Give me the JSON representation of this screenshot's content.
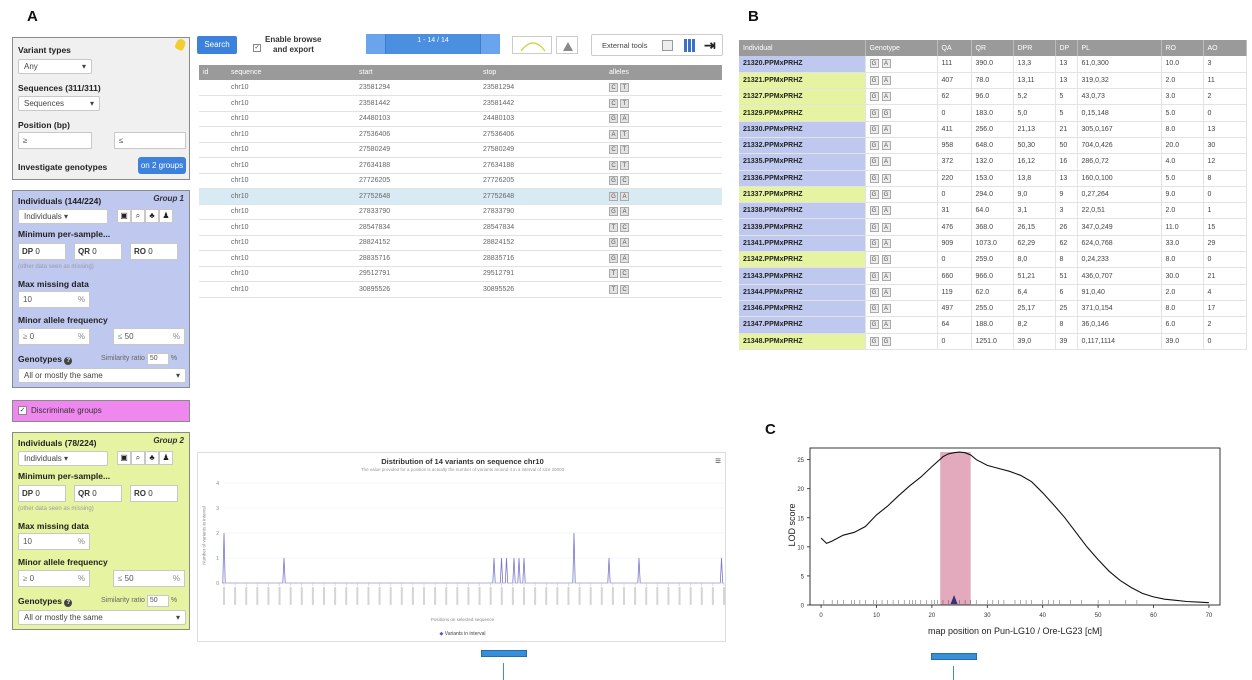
{
  "panels": {
    "a": "A",
    "b": "B",
    "c": "C"
  },
  "top_filter": {
    "variant_types_label": "Variant types",
    "variant_types_value": "Any",
    "sequences_label": "Sequences (311/311)",
    "sequences_value": "Sequences",
    "position_label": "Position (bp)",
    "position_min": "≥",
    "position_max": "≤",
    "investigate_label": "Investigate genotypes",
    "investigate_value": "on 2 groups"
  },
  "group1": {
    "individuals_label": "Individuals (144/224)",
    "group_label": "Group 1",
    "individuals_value": "Individuals",
    "min_per_sample": "Minimum per-sample...",
    "dp_label": "DP",
    "dp_value": "0",
    "qr_label": "QR",
    "qr_value": "0",
    "ro_label": "RO",
    "ro_value": "0",
    "hint": "(other data seen as missing)",
    "max_missing_label": "Max missing data",
    "max_missing_value": "10",
    "percent": "%",
    "maf_label": "Minor allele frequency",
    "maf_min": "0",
    "maf_max": "50",
    "geq": "≥",
    "leq": "≤",
    "genotypes_label": "Genotypes",
    "similarity_label": "Similarity ratio",
    "similarity_value": "50",
    "genotypes_value": "All or mostly the same"
  },
  "discriminate": {
    "label": "Discriminate groups"
  },
  "group2": {
    "individuals_label": "Individuals (78/224)",
    "group_label": "Group 2",
    "individuals_value": "Individuals",
    "min_per_sample": "Minimum per-sample...",
    "dp_label": "DP",
    "dp_value": "0",
    "qr_label": "QR",
    "qr_value": "0",
    "ro_label": "RO",
    "ro_value": "0",
    "hint": "(other data seen as missing)",
    "max_missing_label": "Max missing data",
    "max_missing_value": "10",
    "percent": "%",
    "maf_label": "Minor allele frequency",
    "maf_min": "0",
    "maf_max": "50",
    "geq": "≥",
    "leq": "≤",
    "genotypes_label": "Genotypes",
    "similarity_label": "Similarity ratio",
    "similarity_value": "50",
    "genotypes_value": "All or mostly the same"
  },
  "toolbar": {
    "search_label": "Search",
    "enable_label_1": "Enable browse",
    "enable_label_2": "and export",
    "pager_text": "1 - 14 / 14",
    "external_tools": "External tools"
  },
  "variants_table": {
    "columns": [
      "id",
      "sequence",
      "start",
      "stop",
      "alleles"
    ],
    "rows": [
      {
        "sequence": "chr10",
        "start": "23581294",
        "stop": "23581294",
        "alleles": [
          "C",
          "T"
        ]
      },
      {
        "sequence": "chr10",
        "start": "23581442",
        "stop": "23581442",
        "alleles": [
          "C",
          "T"
        ]
      },
      {
        "sequence": "chr10",
        "start": "24480103",
        "stop": "24480103",
        "alleles": [
          "G",
          "A"
        ]
      },
      {
        "sequence": "chr10",
        "start": "27536406",
        "stop": "27536406",
        "alleles": [
          "A",
          "T"
        ]
      },
      {
        "sequence": "chr10",
        "start": "27580249",
        "stop": "27580249",
        "alleles": [
          "C",
          "T"
        ]
      },
      {
        "sequence": "chr10",
        "start": "27634188",
        "stop": "27634188",
        "alleles": [
          "C",
          "T"
        ]
      },
      {
        "sequence": "chr10",
        "start": "27726205",
        "stop": "27726205",
        "alleles": [
          "G",
          "C"
        ]
      },
      {
        "sequence": "chr10",
        "start": "27752648",
        "stop": "27752648",
        "alleles": [
          "G",
          "A"
        ]
      },
      {
        "sequence": "chr10",
        "start": "27833790",
        "stop": "27833790",
        "alleles": [
          "G",
          "A"
        ]
      },
      {
        "sequence": "chr10",
        "start": "28547834",
        "stop": "28547834",
        "alleles": [
          "T",
          "C"
        ]
      },
      {
        "sequence": "chr10",
        "start": "28824152",
        "stop": "28824152",
        "alleles": [
          "G",
          "A"
        ]
      },
      {
        "sequence": "chr10",
        "start": "28835716",
        "stop": "28835716",
        "alleles": [
          "G",
          "A"
        ]
      },
      {
        "sequence": "chr10",
        "start": "29512791",
        "stop": "29512791",
        "alleles": [
          "T",
          "C"
        ]
      },
      {
        "sequence": "chr10",
        "start": "30895526",
        "stop": "30895526",
        "alleles": [
          "T",
          "C"
        ]
      }
    ]
  },
  "distribution": {
    "title": "Distribution of 14 variants on sequence chr10",
    "subtitle": "The value provided for a position is actually the number of variants around it in a interval of size 20000",
    "ylabel": "Number of variants in interval",
    "xlabel": "Positions on selected sequence",
    "legend": "Variants in interval",
    "line_color": "#7777cc"
  },
  "genotype_table": {
    "columns": [
      "Individual",
      "Genotype",
      "QA",
      "QR",
      "DPR",
      "DP",
      "PL",
      "RO",
      "AO"
    ],
    "rows": [
      {
        "ind": "21320.PPMxPRHZ",
        "group": 1,
        "gt": [
          "G",
          "A"
        ],
        "qa": "111",
        "qr": "390.0",
        "dpr": "13,3",
        "dp": "13",
        "pl": "61,0,300",
        "ro": "10.0",
        "ao": "3"
      },
      {
        "ind": "21321.PPMxPRHZ",
        "group": 2,
        "gt": [
          "G",
          "A"
        ],
        "qa": "407",
        "qr": "78.0",
        "dpr": "13,11",
        "dp": "13",
        "pl": "319,0,32",
        "ro": "2.0",
        "ao": "11"
      },
      {
        "ind": "21327.PPMxPRHZ",
        "group": 2,
        "gt": [
          "G",
          "A"
        ],
        "qa": "62",
        "qr": "96.0",
        "dpr": "5,2",
        "dp": "5",
        "pl": "43,0,73",
        "ro": "3.0",
        "ao": "2"
      },
      {
        "ind": "21329.PPMxPRHZ",
        "group": 2,
        "gt": [
          "G",
          "G"
        ],
        "qa": "0",
        "qr": "183.0",
        "dpr": "5,0",
        "dp": "5",
        "pl": "0,15,148",
        "ro": "5.0",
        "ao": "0"
      },
      {
        "ind": "21330.PPMxPRHZ",
        "group": 1,
        "gt": [
          "G",
          "A"
        ],
        "qa": "411",
        "qr": "256.0",
        "dpr": "21,13",
        "dp": "21",
        "pl": "305,0,167",
        "ro": "8.0",
        "ao": "13"
      },
      {
        "ind": "21332.PPMxPRHZ",
        "group": 1,
        "gt": [
          "G",
          "A"
        ],
        "qa": "958",
        "qr": "648.0",
        "dpr": "50,30",
        "dp": "50",
        "pl": "704,0,426",
        "ro": "20.0",
        "ao": "30"
      },
      {
        "ind": "21335.PPMxPRHZ",
        "group": 1,
        "gt": [
          "G",
          "A"
        ],
        "qa": "372",
        "qr": "132.0",
        "dpr": "16,12",
        "dp": "16",
        "pl": "286,0,72",
        "ro": "4.0",
        "ao": "12"
      },
      {
        "ind": "21336.PPMxPRHZ",
        "group": 1,
        "gt": [
          "G",
          "A"
        ],
        "qa": "220",
        "qr": "153.0",
        "dpr": "13,8",
        "dp": "13",
        "pl": "160,0,100",
        "ro": "5.0",
        "ao": "8"
      },
      {
        "ind": "21337.PPMxPRHZ",
        "group": 2,
        "gt": [
          "G",
          "G"
        ],
        "qa": "0",
        "qr": "294.0",
        "dpr": "9,0",
        "dp": "9",
        "pl": "0,27,264",
        "ro": "9.0",
        "ao": "0"
      },
      {
        "ind": "21338.PPMxPRHZ",
        "group": 1,
        "gt": [
          "G",
          "A"
        ],
        "qa": "31",
        "qr": "64.0",
        "dpr": "3,1",
        "dp": "3",
        "pl": "22,0,51",
        "ro": "2.0",
        "ao": "1"
      },
      {
        "ind": "21339.PPMxPRHZ",
        "group": 1,
        "gt": [
          "G",
          "A"
        ],
        "qa": "476",
        "qr": "368.0",
        "dpr": "26,15",
        "dp": "26",
        "pl": "347,0,249",
        "ro": "11.0",
        "ao": "15"
      },
      {
        "ind": "21341.PPMxPRHZ",
        "group": 1,
        "gt": [
          "G",
          "A"
        ],
        "qa": "909",
        "qr": "1073.0",
        "dpr": "62,29",
        "dp": "62",
        "pl": "624,0,768",
        "ro": "33.0",
        "ao": "29"
      },
      {
        "ind": "21342.PPMxPRHZ",
        "group": 2,
        "gt": [
          "G",
          "G"
        ],
        "qa": "0",
        "qr": "259.0",
        "dpr": "8,0",
        "dp": "8",
        "pl": "0,24,233",
        "ro": "8.0",
        "ao": "0"
      },
      {
        "ind": "21343.PPMxPRHZ",
        "group": 1,
        "gt": [
          "G",
          "A"
        ],
        "qa": "660",
        "qr": "966.0",
        "dpr": "51,21",
        "dp": "51",
        "pl": "436,0,707",
        "ro": "30.0",
        "ao": "21"
      },
      {
        "ind": "21344.PPMxPRHZ",
        "group": 1,
        "gt": [
          "G",
          "A"
        ],
        "qa": "119",
        "qr": "62.0",
        "dpr": "6,4",
        "dp": "6",
        "pl": "91,0,40",
        "ro": "2.0",
        "ao": "4"
      },
      {
        "ind": "21346.PPMxPRHZ",
        "group": 1,
        "gt": [
          "G",
          "A"
        ],
        "qa": "497",
        "qr": "255.0",
        "dpr": "25,17",
        "dp": "25",
        "pl": "371,0,154",
        "ro": "8.0",
        "ao": "17"
      },
      {
        "ind": "21347.PPMxPRHZ",
        "group": 1,
        "gt": [
          "G",
          "A"
        ],
        "qa": "64",
        "qr": "188.0",
        "dpr": "8,2",
        "dp": "8",
        "pl": "36,0,146",
        "ro": "6.0",
        "ao": "2"
      },
      {
        "ind": "21348.PPMxPRHZ",
        "group": 2,
        "gt": [
          "G",
          "G"
        ],
        "qa": "0",
        "qr": "1251.0",
        "dpr": "39,0",
        "dp": "39",
        "pl": "0,117,1114",
        "ro": "39.0",
        "ao": "0"
      }
    ]
  },
  "lod": {
    "ylabel": "LOD score",
    "xlabel": "map position on Pun-LG10 / Ore-LG23 [cM]",
    "highlight_color": "#e3a9bd",
    "marker_color": "#333377"
  },
  "chart_data": [
    {
      "type": "line",
      "title": "Distribution of 14 variants on sequence chr10",
      "xlabel": "Positions on selected sequence",
      "ylabel": "Number of variants in interval",
      "ylim": [
        0,
        4
      ],
      "yticks": [
        0,
        1,
        2,
        3,
        4
      ],
      "series": [
        {
          "name": "Variants in interval",
          "spikes": [
            {
              "x": 0.0,
              "y": 2
            },
            {
              "x": 0.12,
              "y": 1
            },
            {
              "x": 0.54,
              "y": 1
            },
            {
              "x": 0.555,
              "y": 1
            },
            {
              "x": 0.565,
              "y": 1
            },
            {
              "x": 0.58,
              "y": 1
            },
            {
              "x": 0.59,
              "y": 1
            },
            {
              "x": 0.6,
              "y": 1
            },
            {
              "x": 0.7,
              "y": 2
            },
            {
              "x": 0.77,
              "y": 1
            },
            {
              "x": 0.83,
              "y": 1
            },
            {
              "x": 0.995,
              "y": 1
            }
          ]
        }
      ]
    },
    {
      "type": "line",
      "xlabel": "map position on Pun-LG10 / Ore-LG23 [cM]",
      "ylabel": "LOD score",
      "xlim": [
        -2,
        72
      ],
      "ylim": [
        0,
        27
      ],
      "xticks": [
        0,
        10,
        20,
        30,
        40,
        50,
        60,
        70
      ],
      "yticks": [
        0,
        5,
        10,
        15,
        20,
        25
      ],
      "highlight_interval": [
        21.5,
        27
      ],
      "marker_x": 24,
      "series": [
        {
          "x": [
            0,
            1,
            2,
            4,
            6,
            8,
            10,
            12,
            14,
            16,
            18,
            20,
            22,
            23,
            24,
            25,
            26,
            27,
            28,
            30,
            32,
            34,
            36,
            38,
            40,
            42,
            44,
            46,
            48,
            50,
            52,
            54,
            56,
            58,
            60,
            62,
            64,
            66,
            68,
            70
          ],
          "y": [
            11.5,
            10.6,
            11.0,
            12.0,
            12.5,
            13.5,
            15.5,
            17.0,
            18.8,
            20.5,
            22.0,
            23.8,
            25.5,
            26.0,
            26.2,
            26.3,
            26.2,
            25.8,
            25.0,
            24.0,
            23.5,
            23.0,
            22.3,
            21.2,
            19.3,
            17.2,
            15.0,
            12.5,
            10.0,
            7.8,
            5.8,
            4.2,
            3.0,
            2.0,
            1.4,
            1.0,
            0.8,
            0.6,
            0.5,
            0.4
          ]
        }
      ]
    }
  ]
}
